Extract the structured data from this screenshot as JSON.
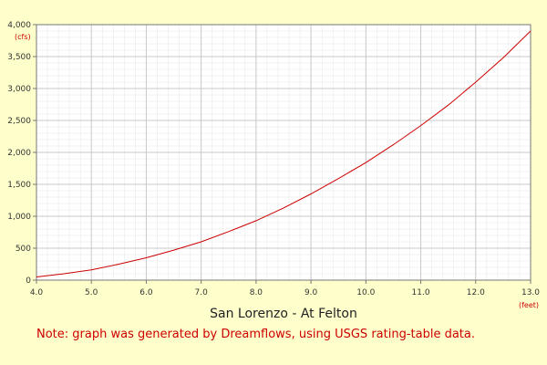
{
  "chart_data": {
    "type": "line",
    "title": "San Lorenzo - At Felton",
    "xlabel": "",
    "ylabel": "",
    "x_unit": "(feet)",
    "y_unit": "(cfs)",
    "xlim": [
      4.0,
      13.0
    ],
    "ylim": [
      0,
      4000
    ],
    "x_ticks": [
      "4.0",
      "5.0",
      "6.0",
      "7.0",
      "8.0",
      "9.0",
      "10.0",
      "11.0",
      "12.0",
      "13.0"
    ],
    "y_ticks": [
      "0",
      "500",
      "1,000",
      "1,500",
      "2,000",
      "2,500",
      "3,000",
      "3,500",
      "4,000"
    ],
    "grid": true,
    "line_color": "#cc0000",
    "series": [
      {
        "x": [
          4.0,
          4.5,
          5.0,
          5.5,
          6.0,
          6.5,
          7.0,
          7.5,
          8.0,
          8.5,
          9.0,
          9.5,
          10.0,
          10.5,
          11.0,
          11.5,
          12.0,
          12.5,
          13.0
        ],
        "values": [
          50,
          100,
          160,
          250,
          350,
          470,
          600,
          760,
          930,
          1130,
          1350,
          1590,
          1840,
          2120,
          2420,
          2740,
          3100,
          3480,
          3900
        ]
      }
    ]
  },
  "note": "Note: graph was generated by Dreamflows, using USGS rating-table data."
}
